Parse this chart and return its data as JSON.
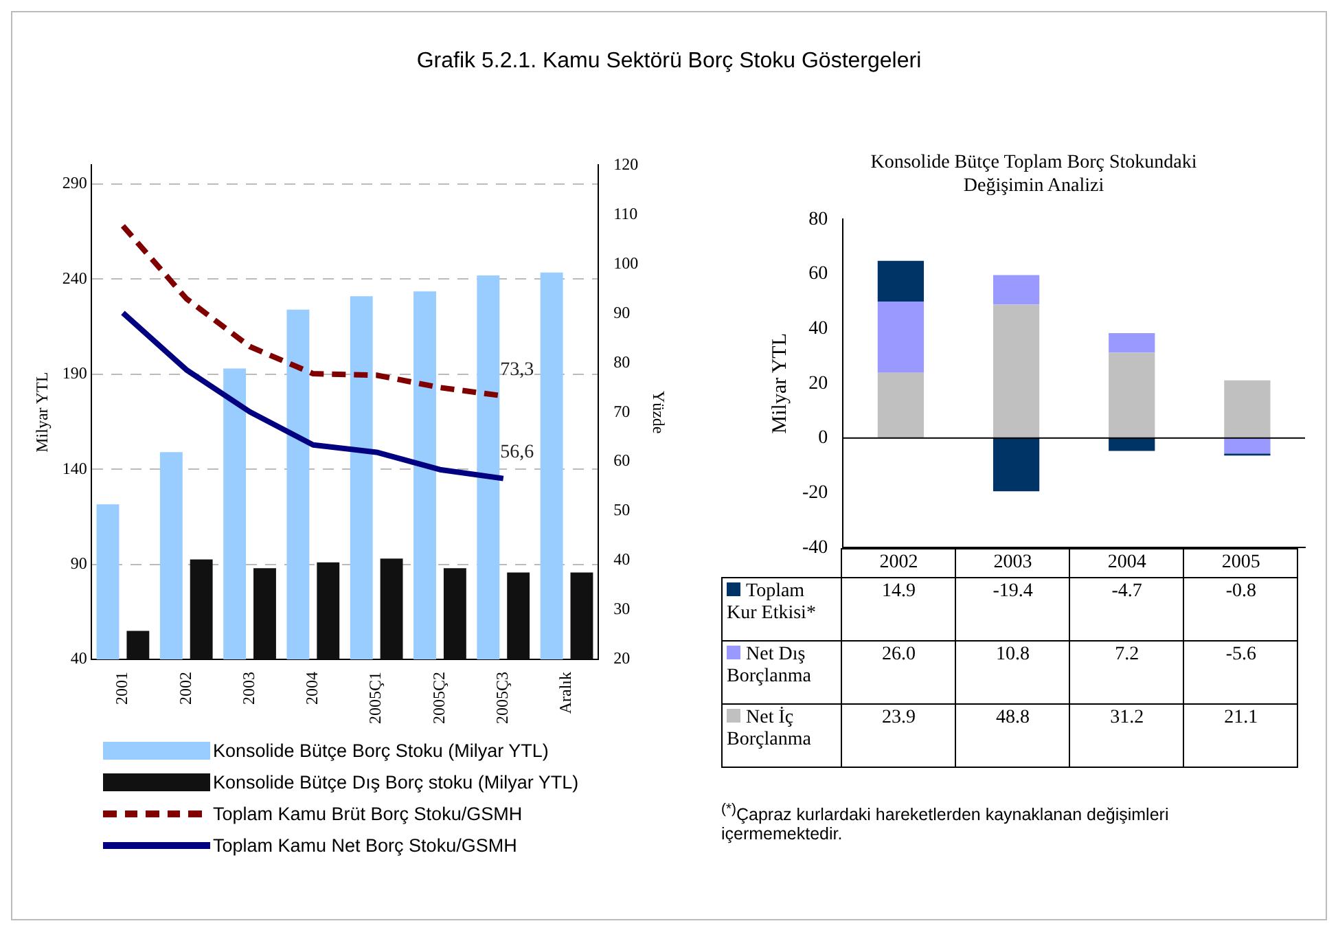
{
  "chart_data": [
    {
      "type": "bar",
      "title": "Grafik 5.2.1. Kamu Sektörü Borç Stoku Göstergeleri",
      "ylabel": "Milyar YTL",
      "y2label": "Yüzde",
      "categories": [
        "2001",
        "2002",
        "2003",
        "2004",
        "2005Ç1",
        "2005Ç2",
        "2005Ç3",
        "Aralık"
      ],
      "series": [
        {
          "name": "Konsolide Bütçe Borç Stoku (Milyar YTL)",
          "color": "#99ccff",
          "values": [
            121.6,
            149,
            193,
            224,
            231,
            233.6,
            242,
            243.5
          ]
        },
        {
          "name": "Konsolide Bütçe Dış Borç stoku (Milyar YTL)",
          "color": "#111111",
          "values": [
            55,
            92.6,
            88,
            91,
            93,
            88,
            85.7,
            85.7
          ]
        },
        {
          "name": "Toplam Kamu Brüt Borç Stoku/GSMH",
          "type": "line",
          "axis": "y2",
          "line_style": "dashed",
          "color": "#800000",
          "values": [
            107.7,
            93,
            83.3,
            77.8,
            77.5,
            75,
            73.3,
            null
          ],
          "value_labels": [
            null,
            null,
            null,
            null,
            null,
            null,
            "73,3",
            null
          ]
        },
        {
          "name": "Toplam Kamu Net Borç Stoku/GSMH",
          "type": "line",
          "axis": "y2",
          "line_style": "solid",
          "color": "#000080",
          "values": [
            90.1,
            78.6,
            70.1,
            63.4,
            61.9,
            58.4,
            56.6,
            null
          ],
          "value_labels": [
            null,
            null,
            null,
            null,
            null,
            null,
            "56,6",
            null
          ]
        }
      ],
      "ylim": [
        40,
        300
      ],
      "yticks": [
        40,
        90,
        140,
        190,
        240,
        290
      ],
      "y2lim": [
        20,
        120
      ],
      "y2ticks": [
        20,
        30,
        40,
        50,
        60,
        70,
        80,
        90,
        100,
        110,
        120
      ],
      "grid": "y",
      "legend": "bottom",
      "marker": "none"
    },
    {
      "type": "bar",
      "title": "Konsolide Bütçe Toplam Borç Stokundaki Değişimin Analizi",
      "ylabel": "Milyar YTL",
      "stacked": true,
      "categories": [
        "2002",
        "2003",
        "2004",
        "2005"
      ],
      "series": [
        {
          "name": "Net İç Borçlanma",
          "color": "#c0c0c0",
          "values": [
            23.9,
            48.8,
            31.2,
            21.1
          ],
          "value_labels": [
            "23.9",
            "48.8",
            "31.2",
            "21.1"
          ]
        },
        {
          "name": "Net Dış Borçlanma",
          "color": "#9999ff",
          "values": [
            26.0,
            10.8,
            7.2,
            -5.6
          ],
          "value_labels": [
            "26.0",
            "10.8",
            "7.2",
            "-5.6"
          ]
        },
        {
          "name": "Toplam Kur Etkisi*",
          "color": "#003366",
          "values": [
            14.9,
            -19.4,
            -4.7,
            -0.8
          ],
          "value_labels": [
            "14.9",
            "-19.4",
            "-4.7",
            "-0.8"
          ]
        }
      ],
      "ylim": [
        -40,
        80
      ],
      "yticks": [
        -40,
        -20,
        0,
        20,
        40,
        60,
        80
      ],
      "grid": false,
      "legend": "bottom",
      "ref_lines": [
        {
          "axis": "y",
          "value": 0,
          "color": "#000000"
        }
      ],
      "annotations": [
        "$^{(*)}$Çapraz kurlardaki hareketlerden kaynaklanan değişimleri içermemektedir."
      ]
    }
  ]
}
